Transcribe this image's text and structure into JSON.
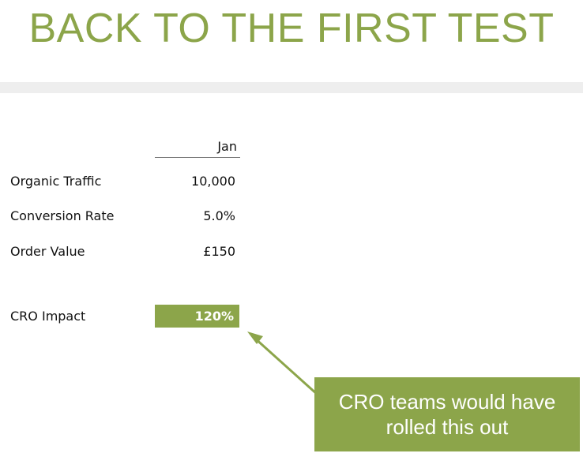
{
  "slide": {
    "title": "BACK TO THE FIRST TEST"
  },
  "table": {
    "column_header": "Jan",
    "rows": [
      {
        "label": "Organic Traffic",
        "value": "10,000"
      },
      {
        "label": "Conversion Rate",
        "value": "5.0%"
      },
      {
        "label": "Order Value",
        "value": "£150"
      }
    ],
    "impact": {
      "label": "CRO Impact",
      "value": "120%"
    }
  },
  "callout": {
    "line1": "CRO teams would have",
    "line2": "rolled this out"
  },
  "colors": {
    "accent": "#8ca54a",
    "band": "#eeeeee"
  }
}
